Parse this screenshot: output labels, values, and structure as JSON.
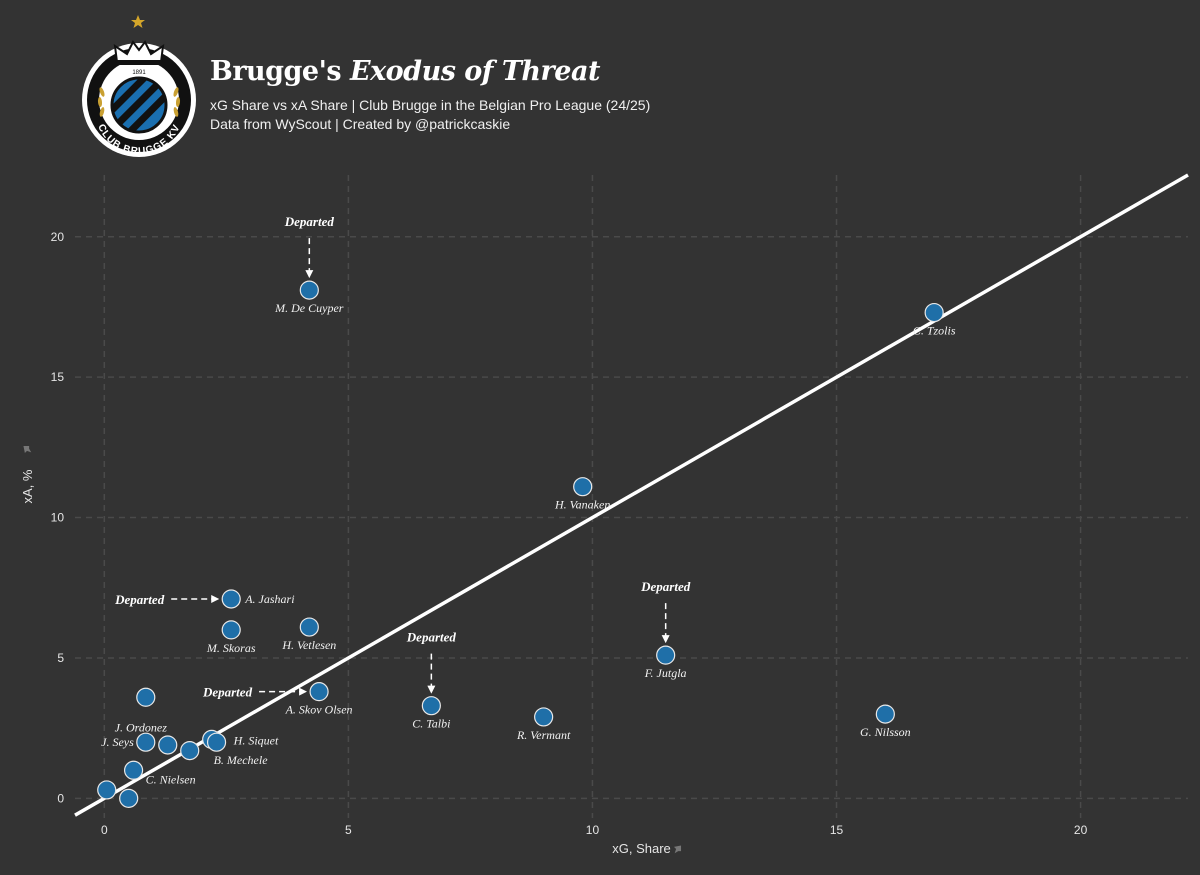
{
  "header": {
    "title_bold": "Brugge's",
    "title_italic": "Exodus of Threat",
    "subtitle": "xG Share vs xA Share | Club Brugge in the Belgian Pro League (24/25)",
    "credit": "Data from WyScout | Created by @patrickcaskie",
    "logo_text": "CLUB BRUGGE KV",
    "logo_year": "1891"
  },
  "chart_data": {
    "type": "scatter",
    "title": "Brugge's Exodus of Threat",
    "xlabel": "xG, Share",
    "ylabel": "xA, %",
    "xlim": [
      -0.6,
      22.2
    ],
    "ylim": [
      -0.7,
      22.2
    ],
    "xticks": [
      0,
      5,
      10,
      15,
      20
    ],
    "yticks": [
      0,
      5,
      10,
      15,
      20
    ],
    "grid": true,
    "reference_line": {
      "slope": 1,
      "intercept": 0
    },
    "points": [
      {
        "name": "M. De Cuyper",
        "x": 4.2,
        "y": 18.1,
        "departed": true
      },
      {
        "name": "C. Tzolis",
        "x": 17.0,
        "y": 17.3,
        "departed": false
      },
      {
        "name": "H. Vanaken",
        "x": 9.8,
        "y": 11.1,
        "departed": false
      },
      {
        "name": "A. Jashari",
        "x": 2.6,
        "y": 7.1,
        "departed": true
      },
      {
        "name": "M. Skoras",
        "x": 2.6,
        "y": 6.0,
        "departed": false
      },
      {
        "name": "H. Vetlesen",
        "x": 4.2,
        "y": 6.1,
        "departed": false
      },
      {
        "name": "F. Jutgla",
        "x": 11.5,
        "y": 5.1,
        "departed": true
      },
      {
        "name": "A. Skov Olsen",
        "x": 4.4,
        "y": 3.8,
        "departed": true
      },
      {
        "name": "C. Talbi",
        "x": 6.7,
        "y": 3.3,
        "departed": true
      },
      {
        "name": "R. Vermant",
        "x": 9.0,
        "y": 2.9,
        "departed": false
      },
      {
        "name": "G. Nilsson",
        "x": 16.0,
        "y": 3.0,
        "departed": false
      },
      {
        "name": "J. Ordonez",
        "x": 0.85,
        "y": 3.6,
        "departed": false
      },
      {
        "name": "J. Seys",
        "x": 0.85,
        "y": 2.0,
        "departed": false
      },
      {
        "name": "H. Siquet",
        "x": 2.2,
        "y": 2.1,
        "departed": false
      },
      {
        "name": "B. Mechele",
        "x": 2.3,
        "y": 2.0,
        "departed": false
      },
      {
        "name": "C. Nielsen",
        "x": 0.6,
        "y": 1.0,
        "departed": false
      },
      {
        "name": "",
        "x": 1.3,
        "y": 1.9,
        "departed": false
      },
      {
        "name": "",
        "x": 1.75,
        "y": 1.7,
        "departed": false
      },
      {
        "name": "",
        "x": 0.05,
        "y": 0.3,
        "departed": false
      },
      {
        "name": "",
        "x": 0.5,
        "y": 0.0,
        "departed": false
      }
    ],
    "annotations": [
      {
        "text": "Departed",
        "target": "M. De Cuyper",
        "direction": "down"
      },
      {
        "text": "Departed",
        "target": "A. Jashari",
        "direction": "right"
      },
      {
        "text": "Departed",
        "target": "A. Skov Olsen",
        "direction": "right"
      },
      {
        "text": "Departed",
        "target": "C. Talbi",
        "direction": "down"
      },
      {
        "text": "Departed",
        "target": "F. Jutgla",
        "direction": "down"
      }
    ],
    "colors": {
      "background": "#333333",
      "point_fill": "#1f6fa8",
      "point_stroke": "#e8e8e8",
      "line": "#ffffff",
      "grid": "#4a4a4a",
      "star": "#d4a62a"
    }
  }
}
